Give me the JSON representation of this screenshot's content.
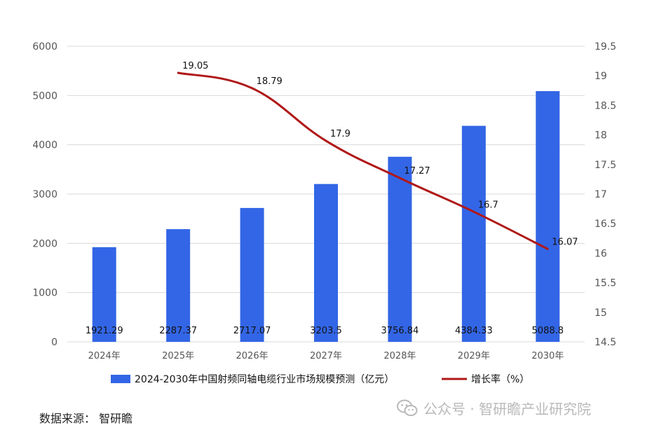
{
  "chart_data": {
    "type": "bar",
    "categories": [
      "2024年",
      "2025年",
      "2026年",
      "2027年",
      "2028年",
      "2029年",
      "2030年"
    ],
    "series": [
      {
        "name": "2024-2030年中国射频同轴电缆行业市场规模预测（亿元）",
        "type": "bar",
        "axis": "left",
        "values": [
          1921.29,
          2287.37,
          2717.07,
          3203.5,
          3756.84,
          4384.33,
          5088.8
        ],
        "labels": [
          "1921.29",
          "2287.37",
          "2717.07",
          "3203.5",
          "3756.84",
          "4384.33",
          "5088.8"
        ],
        "color": "#3366e6"
      },
      {
        "name": "增长率（%）",
        "type": "line",
        "axis": "right",
        "values": [
          null,
          19.05,
          18.79,
          17.9,
          17.27,
          16.7,
          16.07
        ],
        "labels": [
          "",
          "19.05",
          "18.79",
          "17.9",
          "17.27",
          "16.7",
          "16.07"
        ],
        "color": "#b01818"
      }
    ],
    "y_left": {
      "min": 0,
      "max": 6000,
      "ticks": [
        "0",
        "1000",
        "2000",
        "3000",
        "4000",
        "5000",
        "6000"
      ]
    },
    "y_right": {
      "min": 14.5,
      "max": 19.5,
      "ticks": [
        "14.5",
        "15",
        "15.5",
        "16",
        "16.5",
        "17",
        "17.5",
        "18",
        "18.5",
        "19",
        "19.5"
      ]
    },
    "grid": true,
    "legend_position": "bottom"
  },
  "source": "数据来源：  智研瞻",
  "watermark": "公众号 · 智研瞻产业研究院",
  "watermark_icon": "wechat-icon"
}
